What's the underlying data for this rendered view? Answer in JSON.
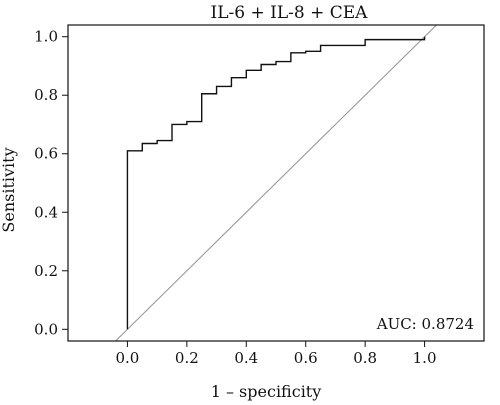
{
  "chart_data": {
    "type": "line",
    "title": "IL-6 + IL-8 + CEA",
    "xlabel": "1 – specificity",
    "ylabel": "Sensitivity",
    "xlim": [
      -0.2,
      1.2
    ],
    "ylim": [
      -0.04,
      1.04
    ],
    "x_ticks": [
      "0.0",
      "0.2",
      "0.4",
      "0.6",
      "0.8",
      "1.0"
    ],
    "y_ticks": [
      "0.0",
      "0.2",
      "0.4",
      "0.6",
      "0.8",
      "1.0"
    ],
    "x_tick_values": [
      0,
      0.2,
      0.4,
      0.6,
      0.8,
      1.0
    ],
    "y_tick_values": [
      0,
      0.2,
      0.4,
      0.6,
      0.8,
      1.0
    ],
    "series": [
      {
        "color": "#111111",
        "x": [
          0,
          0,
          0.05,
          0.05,
          0.1,
          0.1,
          0.15,
          0.15,
          0.2,
          0.2,
          0.25,
          0.25,
          0.3,
          0.3,
          0.35,
          0.35,
          0.4,
          0.4,
          0.45,
          0.45,
          0.5,
          0.5,
          0.55,
          0.55,
          0.6,
          0.6,
          0.65,
          0.65,
          0.8,
          0.8,
          1.0,
          1.0
        ],
        "y": [
          0,
          0.61,
          0.61,
          0.635,
          0.635,
          0.645,
          0.645,
          0.7,
          0.7,
          0.71,
          0.71,
          0.805,
          0.805,
          0.83,
          0.83,
          0.86,
          0.86,
          0.885,
          0.885,
          0.905,
          0.905,
          0.915,
          0.915,
          0.945,
          0.945,
          0.95,
          0.95,
          0.97,
          0.97,
          0.99,
          0.99,
          1.0
        ]
      }
    ],
    "reference_line": {
      "x": [
        -0.2,
        1.2
      ],
      "y": [
        -0.2,
        1.2
      ],
      "color": "#999999"
    },
    "annotation": "AUC: 0.8724",
    "grid": false
  }
}
